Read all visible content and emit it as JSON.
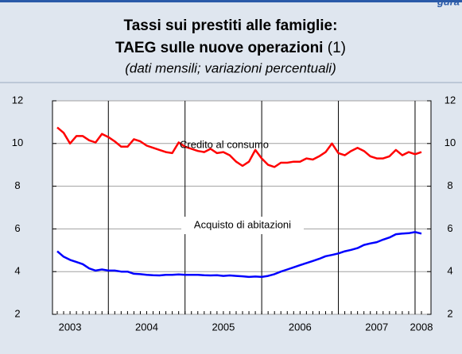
{
  "figure_label": "gura",
  "chart_data": {
    "type": "line",
    "title": "Tassi sui prestiti alle famiglie:",
    "title_2": "TAEG sulle nuove operazioni",
    "title_note": "(1)",
    "subtitle": "(dati mensili; variazioni percentuali)",
    "categories": [
      null,
      null,
      "2003",
      null,
      null,
      null,
      null,
      null,
      null,
      null,
      null,
      null,
      null,
      null,
      "2004",
      null,
      null,
      null,
      null,
      null,
      null,
      null,
      null,
      null,
      null,
      null,
      "2005",
      null,
      null,
      null,
      null,
      null,
      null,
      null,
      null,
      null,
      null,
      null,
      "2006",
      null,
      null,
      null,
      null,
      null,
      null,
      null,
      null,
      null,
      null,
      null,
      "2007",
      null,
      null,
      null,
      null,
      null,
      null,
      "2008"
    ],
    "series": [
      {
        "name": "Credito al consumo",
        "color": "#ff0000",
        "values": [
          10.75,
          10.5,
          10.0,
          10.35,
          10.35,
          10.15,
          10.05,
          10.45,
          10.3,
          10.1,
          9.85,
          9.85,
          10.2,
          10.1,
          9.9,
          9.8,
          9.7,
          9.6,
          9.55,
          10.05,
          9.85,
          9.75,
          9.65,
          9.6,
          9.75,
          9.55,
          9.6,
          9.45,
          9.15,
          8.95,
          9.15,
          9.7,
          9.3,
          9.0,
          8.9,
          9.1,
          9.1,
          9.15,
          9.15,
          9.3,
          9.25,
          9.4,
          9.6,
          10.0,
          9.55,
          9.45,
          9.65,
          9.8,
          9.65,
          9.4,
          9.3,
          9.3,
          9.4,
          9.7,
          9.45,
          9.6,
          9.5,
          9.6
        ]
      },
      {
        "name": "Acquisto di abitazioni",
        "color": "#0000ff",
        "values": [
          4.95,
          4.7,
          4.55,
          4.45,
          4.35,
          4.15,
          4.05,
          4.1,
          4.05,
          4.05,
          4.0,
          4.0,
          3.9,
          3.88,
          3.85,
          3.83,
          3.82,
          3.85,
          3.85,
          3.87,
          3.85,
          3.85,
          3.85,
          3.83,
          3.82,
          3.83,
          3.8,
          3.82,
          3.8,
          3.78,
          3.75,
          3.77,
          3.75,
          3.8,
          3.88,
          4.0,
          4.1,
          4.2,
          4.3,
          4.4,
          4.5,
          4.6,
          4.72,
          4.78,
          4.85,
          4.95,
          5.02,
          5.1,
          5.25,
          5.32,
          5.38,
          5.5,
          5.6,
          5.75,
          5.78,
          5.8,
          5.85,
          5.78
        ]
      }
    ],
    "ylim": [
      2,
      12
    ],
    "yticks": [
      2,
      4,
      6,
      8,
      10,
      12
    ],
    "grid": true
  }
}
